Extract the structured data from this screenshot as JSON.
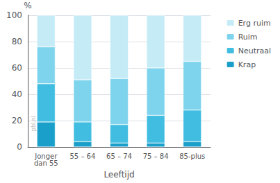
{
  "chart_data": {
    "type": "bar",
    "stacked": true,
    "categories": [
      "Jonger\ndan 55",
      "55 – 64",
      "65 – 74",
      "75 – 84",
      "85-plus"
    ],
    "xlabel": "Leeftijd",
    "ylabel": "%",
    "ylim": [
      0,
      100
    ],
    "yticks": [
      0,
      20,
      40,
      60,
      80,
      100
    ],
    "grid": true,
    "legend": "right",
    "annotations": [
      "pbl.nl"
    ],
    "series": [
      {
        "name": "Krap",
        "color": "#1a9fca",
        "values": [
          19,
          4,
          3,
          3,
          4
        ]
      },
      {
        "name": "Neutraal",
        "color": "#40bde0",
        "values": [
          29,
          15,
          14,
          21,
          24
        ]
      },
      {
        "name": "Ruim",
        "color": "#7fd4ed",
        "values": [
          28,
          32,
          35,
          36,
          37
        ]
      },
      {
        "name": "Erg ruim",
        "color": "#c5ebf7",
        "values": [
          24,
          49,
          48,
          40,
          35
        ]
      }
    ]
  }
}
